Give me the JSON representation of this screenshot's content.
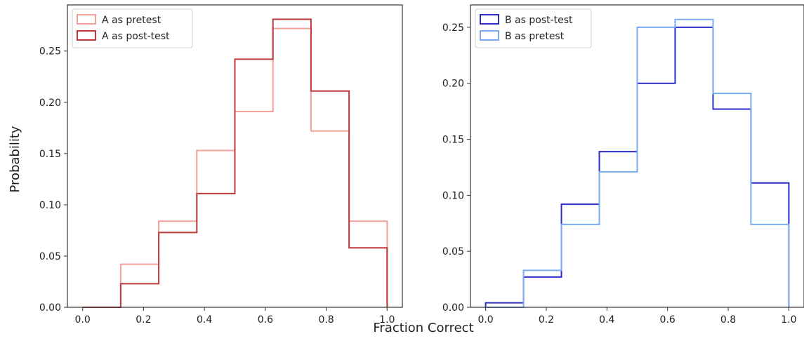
{
  "figure": {
    "ylabel": "Probability",
    "xlabel": "Fraction Correct"
  },
  "chart_data": [
    {
      "type": "histogram-step",
      "bin_edges": [
        0,
        0.125,
        0.25,
        0.375,
        0.5,
        0.625,
        0.75,
        0.875,
        1.0
      ],
      "xlim": [
        -0.05,
        1.05
      ],
      "ylim": [
        0,
        0.295
      ],
      "xticks": [
        "0.0",
        "0.2",
        "0.4",
        "0.6",
        "0.8",
        "1.0"
      ],
      "yticks": [
        "0.00",
        "0.05",
        "0.10",
        "0.15",
        "0.20",
        "0.25"
      ],
      "legend_position": "top-left",
      "series": [
        {
          "name": "A as pretest",
          "color": "#f4a09a",
          "values": [
            0.0,
            0.042,
            0.084,
            0.153,
            0.191,
            0.272,
            0.172,
            0.084
          ]
        },
        {
          "name": "A as post-test",
          "color": "#c0393b",
          "values": [
            0.0,
            0.023,
            0.073,
            0.111,
            0.242,
            0.281,
            0.211,
            0.058
          ]
        }
      ]
    },
    {
      "type": "histogram-step",
      "bin_edges": [
        0,
        0.125,
        0.25,
        0.375,
        0.5,
        0.625,
        0.75,
        0.875,
        1.0
      ],
      "xlim": [
        -0.05,
        1.05
      ],
      "ylim": [
        0,
        0.27
      ],
      "xticks": [
        "0.0",
        "0.2",
        "0.4",
        "0.6",
        "0.8",
        "1.0"
      ],
      "yticks": [
        "0.00",
        "0.05",
        "0.10",
        "0.15",
        "0.20",
        "0.25"
      ],
      "legend_position": "top-left",
      "series": [
        {
          "name": "B as post-test",
          "color": "#2c2cc8",
          "values": [
            0.004,
            0.027,
            0.092,
            0.139,
            0.2,
            0.25,
            0.177,
            0.111
          ]
        },
        {
          "name": "B as pretest",
          "color": "#7aaaf0",
          "values": [
            0.0,
            0.033,
            0.074,
            0.121,
            0.25,
            0.257,
            0.191,
            0.074
          ]
        }
      ]
    }
  ]
}
